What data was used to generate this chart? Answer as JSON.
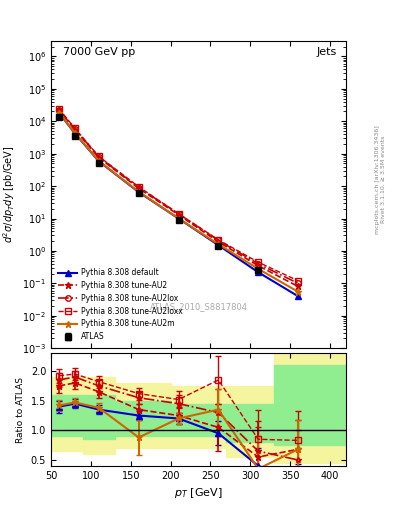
{
  "title_left": "7000 GeV pp",
  "title_right": "Jets",
  "ylabel_top": "d²σ/dp_T dy [pb/GeV]",
  "ylabel_bottom": "Ratio to ATLAS",
  "xlabel": "p_T [GeV]",
  "watermark": "ATLAS_2010_S8817804",
  "right_label": "mcplots.cern.ch [arXiv:1306.3436]",
  "right_label2": "Rivet 3.1.10, ≥ 3.5M events",
  "pt_atlas": [
    60,
    80,
    110,
    160,
    210,
    260,
    310
  ],
  "sigma_atlas": [
    14000,
    3500,
    500,
    60,
    9,
    1.4,
    0.25
  ],
  "atlas_yerr_lo": [
    1400,
    350,
    50,
    6,
    0.9,
    0.14,
    0.025
  ],
  "atlas_yerr_hi": [
    1400,
    350,
    50,
    6,
    0.9,
    0.14,
    0.025
  ],
  "pt_pythia": [
    60,
    80,
    110,
    160,
    210,
    260,
    310,
    360
  ],
  "default_sigma": [
    18000,
    4200,
    580,
    65,
    10,
    1.5,
    0.22,
    0.04
  ],
  "au2_sigma": [
    22000,
    5500,
    750,
    85,
    13,
    1.9,
    0.35,
    0.08
  ],
  "au2lox_sigma": [
    23000,
    5700,
    790,
    90,
    14,
    2.1,
    0.4,
    0.1
  ],
  "au2loxx_sigma": [
    24000,
    6000,
    820,
    95,
    14,
    2.2,
    0.45,
    0.12
  ],
  "au2m_sigma": [
    18500,
    4300,
    590,
    67,
    10,
    1.6,
    0.28,
    0.055
  ],
  "ratio_pt": [
    60,
    80,
    110,
    160,
    210,
    260,
    310,
    360
  ],
  "ratio_default": [
    1.4,
    1.45,
    1.35,
    1.25,
    1.2,
    0.95,
    0.4,
    0.18
  ],
  "ratio_au2": [
    1.75,
    1.8,
    1.65,
    1.35,
    1.25,
    1.05,
    0.55,
    0.68
  ],
  "ratio_au2lox": [
    1.85,
    1.9,
    1.75,
    1.55,
    1.45,
    1.3,
    0.65,
    0.5
  ],
  "ratio_au2loxx": [
    1.92,
    1.95,
    1.82,
    1.62,
    1.52,
    1.85,
    0.85,
    0.83
  ],
  "ratio_au2m": [
    1.42,
    1.47,
    1.38,
    0.88,
    1.2,
    1.35,
    0.35,
    0.68
  ],
  "ratio_default_err": [
    0.1,
    0.08,
    0.08,
    0.08,
    0.1,
    0.2,
    0.3,
    0.25
  ],
  "ratio_au2_err": [
    0.12,
    0.1,
    0.1,
    0.1,
    0.15,
    0.4,
    0.5,
    0.5
  ],
  "ratio_au2lox_err": [
    0.12,
    0.1,
    0.1,
    0.1,
    0.15,
    0.4,
    0.5,
    0.5
  ],
  "ratio_au2loxx_err": [
    0.12,
    0.1,
    0.1,
    0.1,
    0.15,
    0.4,
    0.5,
    0.5
  ],
  "ratio_au2m_err": [
    0.1,
    0.08,
    0.08,
    0.3,
    0.1,
    0.35,
    0.55,
    0.5
  ],
  "green_band_x": [
    50,
    90,
    130,
    200,
    270,
    330,
    420
  ],
  "green_band_lo": [
    0.9,
    0.85,
    0.9,
    0.9,
    0.8,
    0.75,
    0.75
  ],
  "green_band_hi": [
    1.6,
    1.6,
    1.5,
    1.45,
    1.45,
    2.1,
    2.1
  ],
  "yellow_band_x": [
    50,
    90,
    130,
    200,
    270,
    330,
    420
  ],
  "yellow_band_lo": [
    0.65,
    0.6,
    0.7,
    0.7,
    0.55,
    0.45,
    0.45
  ],
  "yellow_band_hi": [
    1.9,
    1.9,
    1.8,
    1.75,
    1.75,
    2.3,
    2.3
  ],
  "color_atlas": "#000000",
  "color_default": "#0000cc",
  "color_au2": "#cc0000",
  "color_au2lox": "#cc0000",
  "color_au2loxx": "#cc0000",
  "color_au2m": "#cc6600"
}
